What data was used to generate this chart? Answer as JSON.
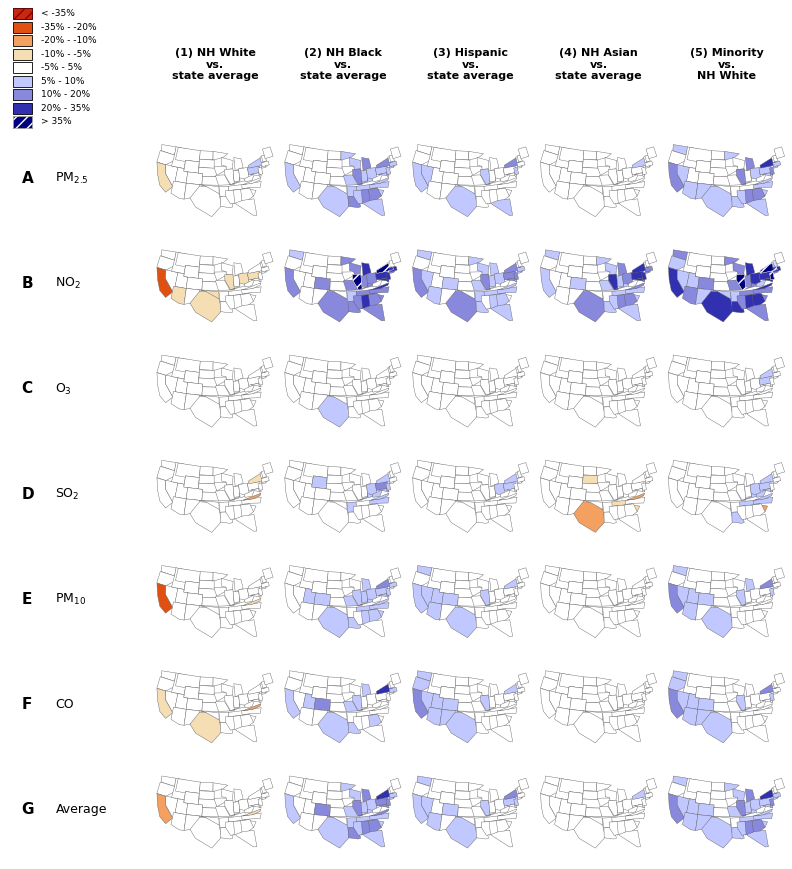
{
  "legend_labels": [
    "< -35%",
    "-35% - -20%",
    "-20% - -10%",
    "-10% - -5%",
    "-5% - 5%",
    "5% - 10%",
    "10% - 20%",
    "20% - 35%",
    "> 35%"
  ],
  "legend_colors_list": [
    "#c8280e",
    "#e05010",
    "#f4a060",
    "#f5deb3",
    "#ffffff",
    "#c0c8ff",
    "#8888dd",
    "#3030b0",
    "#000080"
  ],
  "col_headers": [
    "(1) NH White\nvs.\nstate average",
    "(2) NH Black\nvs.\nstate average",
    "(3) Hispanic\nvs.\nstate average",
    "(4) NH Asian\nvs.\nstate average",
    "(5) Minority\nvs.\nNH White"
  ],
  "row_labels": [
    "A",
    "B",
    "C",
    "D",
    "E",
    "F",
    "G"
  ],
  "row_pollutants": [
    "PM$_{2.5}$",
    "NO$_2$",
    "O$_3$",
    "SO$_2$",
    "PM$_{10}$",
    "CO",
    "Average"
  ]
}
